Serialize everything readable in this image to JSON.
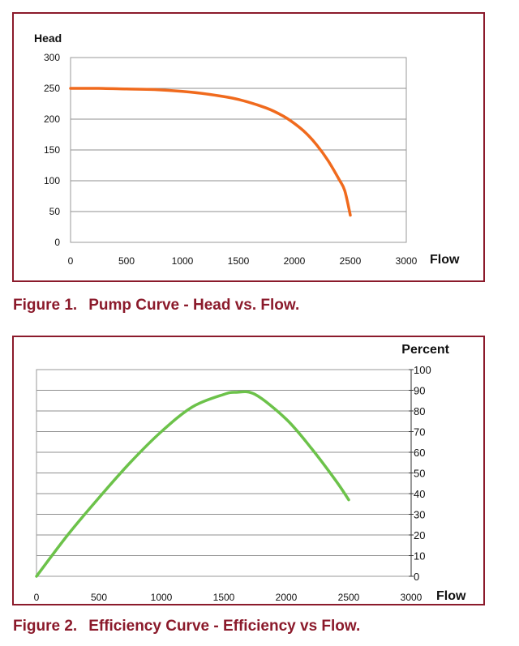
{
  "charts": [
    {
      "caption_number": "Figure 1.",
      "caption_text": "Pump Curve - Head vs. Flow."
    },
    {
      "caption_number": "Figure 2.",
      "caption_text": "Efficiency Curve - Efficiency vs Flow."
    }
  ],
  "chart_data": [
    {
      "type": "line",
      "title": "",
      "xlabel": "Flow",
      "ylabel": "Head",
      "xlim": [
        0,
        3000
      ],
      "ylim": [
        0,
        300
      ],
      "x_ticks": [
        "0",
        "500",
        "1000",
        "1500",
        "2000",
        "2500",
        "3000"
      ],
      "y_ticks": [
        "0",
        "50",
        "100",
        "150",
        "200",
        "250",
        "300"
      ],
      "grid": "horizontal",
      "color": "#f06a1d",
      "series": [
        {
          "x": [
            0,
            250,
            500,
            750,
            1000,
            1250,
            1500,
            1750,
            1900,
            2000,
            2100,
            2200,
            2300,
            2400,
            2450,
            2500
          ],
          "values": [
            250,
            250,
            249,
            248,
            245,
            240,
            232,
            218,
            205,
            193,
            178,
            158,
            133,
            102,
            84,
            44
          ]
        }
      ]
    },
    {
      "type": "line",
      "title": "",
      "xlabel": "Flow",
      "ylabel": "Percent",
      "xlim": [
        0,
        3000
      ],
      "ylim": [
        0,
        100
      ],
      "x_ticks": [
        "0",
        "500",
        "1000",
        "1500",
        "2000",
        "2500",
        "3000"
      ],
      "y_ticks": [
        "0",
        "10",
        "20",
        "30",
        "40",
        "50",
        "60",
        "70",
        "80",
        "90",
        "100"
      ],
      "grid": "horizontal",
      "y_axis_side": "right",
      "color": "#6cc24a",
      "series": [
        {
          "x": [
            0,
            250,
            500,
            750,
            1000,
            1250,
            1500,
            1600,
            1750,
            2000,
            2200,
            2400,
            2500
          ],
          "values": [
            0,
            20,
            38,
            55,
            70,
            82,
            88,
            89,
            88,
            76,
            62,
            46,
            37
          ]
        }
      ]
    }
  ]
}
